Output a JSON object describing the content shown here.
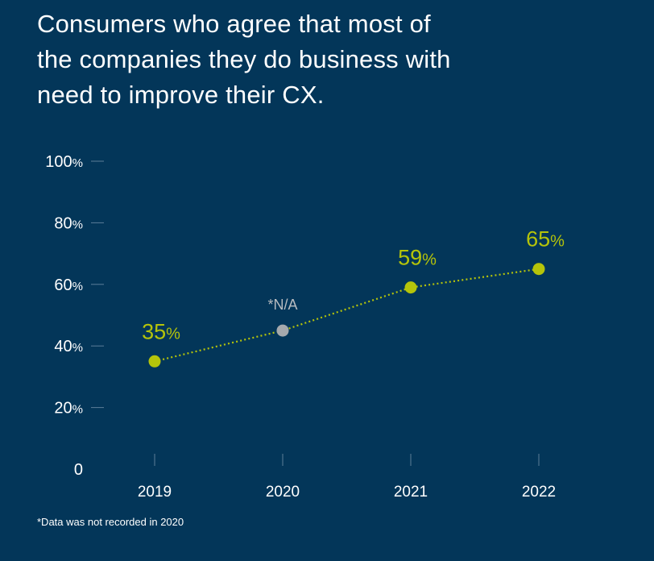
{
  "title_lines": [
    "Consumers who agree that most of",
    "the companies they do business with",
    "need to improve their CX."
  ],
  "footnote": "*Data was not recorded in 2020",
  "colors": {
    "background": "#033659",
    "accent": "#b5c40a",
    "missing": "#a5a9ad",
    "text": "#ffffff"
  },
  "chart_data": {
    "type": "line",
    "title": "Consumers who agree that most of the companies they do business with need to improve their CX.",
    "categories": [
      "2019",
      "2020",
      "2021",
      "2022"
    ],
    "series": [
      {
        "values": [
          35,
          45,
          59,
          65
        ],
        "labels": [
          "35%",
          "*N/A",
          "59%",
          "65%"
        ],
        "missing": [
          false,
          true,
          false,
          false
        ]
      }
    ],
    "y_ticks": [
      {
        "value": 0,
        "num": "0",
        "unit": ""
      },
      {
        "value": 20,
        "num": "20",
        "unit": "%"
      },
      {
        "value": 40,
        "num": "40",
        "unit": "%"
      },
      {
        "value": 60,
        "num": "60",
        "unit": "%"
      },
      {
        "value": 80,
        "num": "80",
        "unit": "%"
      },
      {
        "value": 100,
        "num": "100",
        "unit": "%"
      }
    ],
    "ylim": [
      0,
      100
    ],
    "xlabel": "",
    "ylabel": "",
    "grid": false,
    "line_style": "dotted"
  }
}
